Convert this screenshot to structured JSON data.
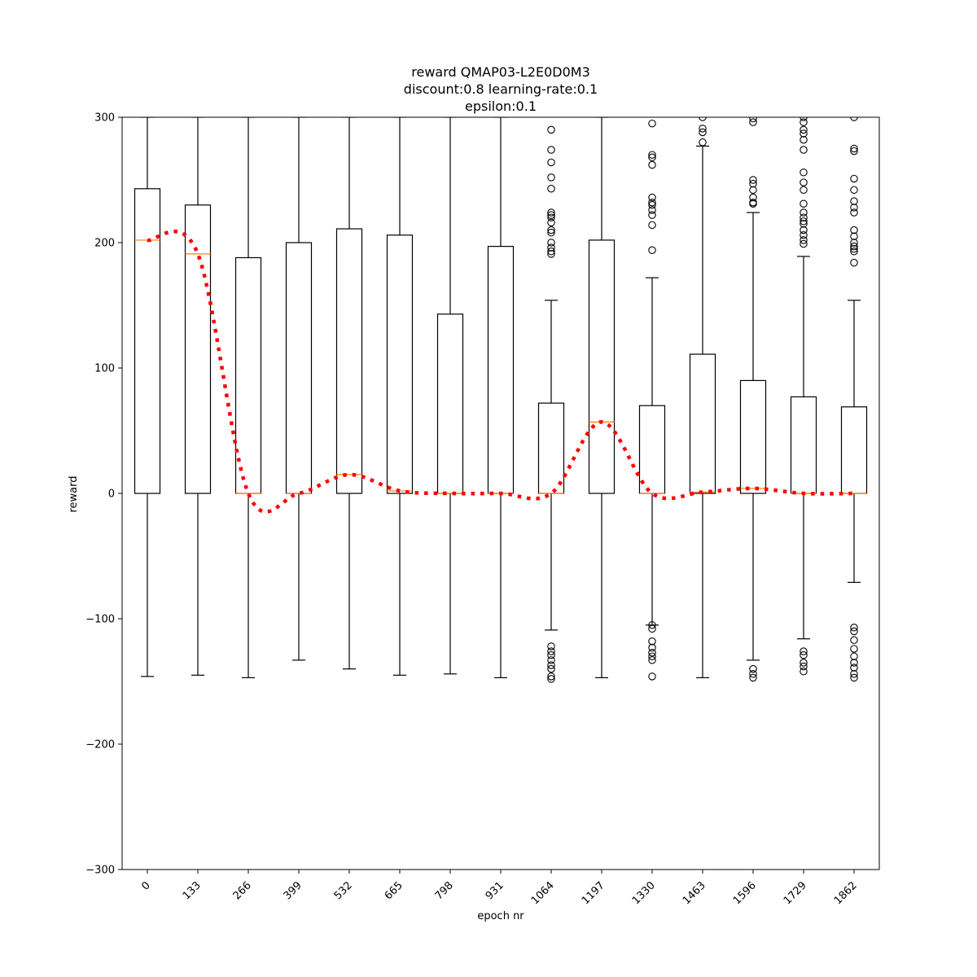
{
  "chart_data": {
    "type": "box",
    "title_lines": [
      "reward QMAP03-L2E0D0M3",
      "discount:0.8 learning-rate:0.1",
      "epsilon:0.1"
    ],
    "xlabel": "epoch nr",
    "ylabel": "reward",
    "ylim": [
      -300,
      300
    ],
    "yticks": [
      -300,
      -200,
      -100,
      0,
      100,
      200,
      300
    ],
    "yticks_labels": [
      "−300",
      "−200",
      "−100",
      "0",
      "100",
      "200",
      "300"
    ],
    "categories": [
      "0",
      "133",
      "266",
      "399",
      "532",
      "665",
      "798",
      "931",
      "1064",
      "1197",
      "1330",
      "1463",
      "1596",
      "1729",
      "1862"
    ],
    "boxes": [
      {
        "q1": 0,
        "median": 202,
        "q3": 243,
        "whisker_low": -146,
        "whisker_high": 300,
        "outliers": []
      },
      {
        "q1": 0,
        "median": 191,
        "q3": 230,
        "whisker_low": -145,
        "whisker_high": 300,
        "outliers": []
      },
      {
        "q1": 0,
        "median": 0,
        "q3": 188,
        "whisker_low": -147,
        "whisker_high": 300,
        "outliers": []
      },
      {
        "q1": 0,
        "median": 0,
        "q3": 200,
        "whisker_low": -133,
        "whisker_high": 300,
        "outliers": []
      },
      {
        "q1": 0,
        "median": 15,
        "q3": 211,
        "whisker_low": -140,
        "whisker_high": 300,
        "outliers": []
      },
      {
        "q1": 0,
        "median": 2,
        "q3": 206,
        "whisker_low": -145,
        "whisker_high": 300,
        "outliers": []
      },
      {
        "q1": 0,
        "median": 0,
        "q3": 143,
        "whisker_low": -144,
        "whisker_high": 300,
        "outliers": []
      },
      {
        "q1": 0,
        "median": 0,
        "q3": 197,
        "whisker_low": -147,
        "whisker_high": 300,
        "outliers": []
      },
      {
        "q1": 0,
        "median": 0,
        "q3": 72,
        "whisker_low": -109,
        "whisker_high": 154,
        "outliers": [
          290,
          274,
          264,
          252,
          243,
          224,
          222,
          220,
          216,
          210,
          208,
          200,
          196,
          193,
          191,
          -122,
          -126,
          -129,
          -133,
          -137,
          -140,
          -146,
          -148
        ]
      },
      {
        "q1": 0,
        "median": 57,
        "q3": 202,
        "whisker_low": -147,
        "whisker_high": 300,
        "outliers": []
      },
      {
        "q1": 0,
        "median": 0,
        "q3": 70,
        "whisker_low": -105,
        "whisker_high": 172,
        "outliers": [
          295,
          270,
          268,
          262,
          236,
          232,
          230,
          226,
          222,
          214,
          194,
          -105,
          -108,
          -118,
          -123,
          -127,
          -130,
          -133,
          -146
        ]
      },
      {
        "q1": 0,
        "median": 1,
        "q3": 111,
        "whisker_low": -147,
        "whisker_high": 277,
        "outliers": [
          300,
          291,
          288,
          280
        ]
      },
      {
        "q1": 0,
        "median": 4,
        "q3": 90,
        "whisker_low": -133,
        "whisker_high": 224,
        "outliers": [
          299,
          296,
          250,
          247,
          242,
          236,
          232,
          231,
          -140,
          -144,
          -147
        ]
      },
      {
        "q1": 0,
        "median": 0,
        "q3": 77,
        "whisker_low": -116,
        "whisker_high": 189,
        "outliers": [
          300,
          296,
          290,
          287,
          282,
          274,
          256,
          248,
          242,
          231,
          224,
          220,
          217,
          215,
          210,
          206,
          202,
          199,
          -126,
          -129,
          -135,
          -138,
          -142
        ]
      },
      {
        "q1": 0,
        "median": 0,
        "q3": 69,
        "whisker_low": -71,
        "whisker_high": 154,
        "outliers": [
          300,
          275,
          273,
          251,
          242,
          233,
          228,
          224,
          210,
          205,
          200,
          197,
          195,
          193,
          184,
          -107,
          -110,
          -117,
          -124,
          -130,
          -135,
          -139,
          -144,
          -147
        ]
      }
    ],
    "median_line": {
      "values": [
        202,
        191,
        0,
        0,
        15,
        2,
        0,
        0,
        0,
        57,
        0,
        1,
        4,
        0,
        0
      ],
      "style": "dotted",
      "color": "#ff0000"
    },
    "colors": {
      "box": "#000000",
      "median": "#ff7f0e",
      "trend": "#ff0000"
    },
    "grid": false
  }
}
